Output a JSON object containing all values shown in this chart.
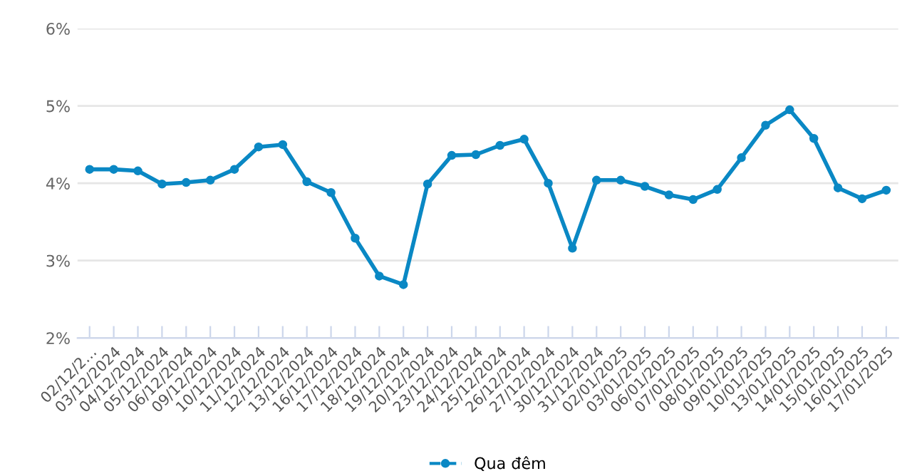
{
  "chart_data": {
    "type": "line",
    "categories": [
      "02/12/2…",
      "03/12/2024",
      "04/12/2024",
      "05/12/2024",
      "06/12/2024",
      "09/12/2024",
      "10/12/2024",
      "11/12/2024",
      "12/12/2024",
      "13/12/2024",
      "16/12/2024",
      "17/12/2024",
      "18/12/2024",
      "19/12/2024",
      "20/12/2024",
      "23/12/2024",
      "24/12/2024",
      "25/12/2024",
      "26/12/2024",
      "27/12/2024",
      "30/12/2024",
      "31/12/2024",
      "02/01/2025",
      "03/01/2025",
      "06/01/2025",
      "07/01/2025",
      "08/01/2025",
      "09/01/2025",
      "10/01/2025",
      "13/01/2025",
      "14/01/2025",
      "15/01/2025",
      "16/01/2025",
      "17/01/2025"
    ],
    "series": [
      {
        "name": "Qua đêm",
        "color": "#0a88c4",
        "values": [
          4.18,
          4.18,
          4.16,
          3.99,
          4.01,
          4.04,
          4.18,
          4.47,
          4.5,
          4.02,
          3.88,
          3.29,
          2.8,
          2.69,
          3.99,
          4.36,
          4.37,
          4.49,
          4.57,
          4.0,
          3.16,
          4.04,
          4.04,
          3.96,
          3.85,
          3.79,
          3.92,
          4.33,
          4.75,
          4.95,
          4.58,
          3.94,
          3.8,
          3.91
        ]
      }
    ],
    "ylim": [
      2,
      6
    ],
    "yticks": [
      {
        "value": 2,
        "label": "2%"
      },
      {
        "value": 3,
        "label": "3%"
      },
      {
        "value": 4,
        "label": "4%"
      },
      {
        "value": 5,
        "label": "5%"
      },
      {
        "value": 6,
        "label": "6%"
      }
    ],
    "grid": "y",
    "legend": "bottom",
    "marker": "circle",
    "line_style": "solid"
  }
}
